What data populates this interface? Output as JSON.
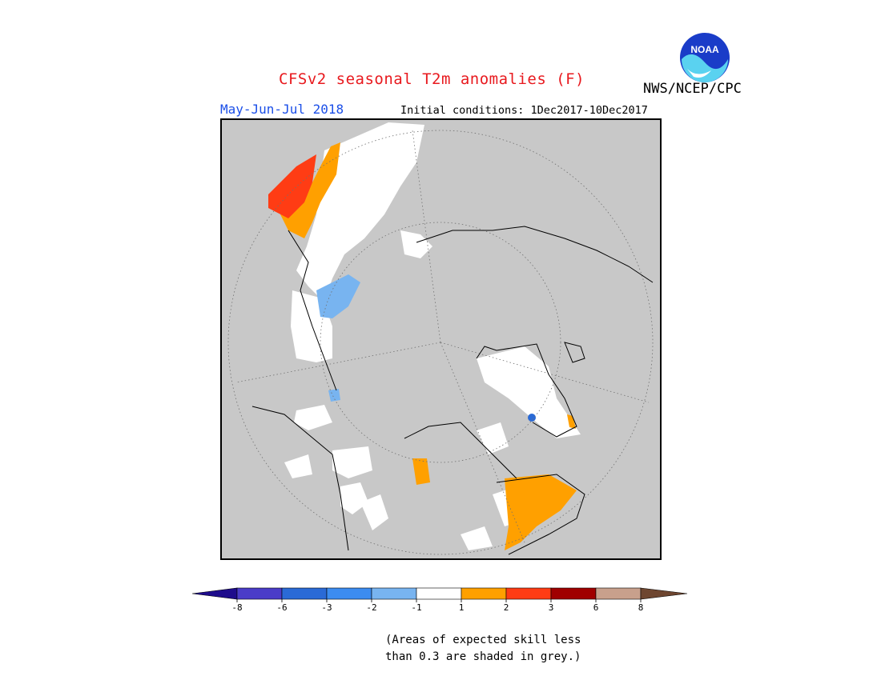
{
  "header": {
    "title": "CFSv2 seasonal T2m anomalies (F)",
    "period": "May-Jun-Jul 2018",
    "initial_conditions": "Initial conditions: 1Dec2017-10Dec2017",
    "credit": "NWS/NCEP/CPC",
    "logo_text": "NOAA"
  },
  "colors": {
    "title": "#e8191e",
    "period": "#1b4fe8",
    "map_background": "#c8c8c8",
    "near_normal": "#ffffff",
    "warm_1_2": "#ffa000",
    "warm_2_3": "#ff3c14",
    "cool_m2_m1": "#78b4f0",
    "cool_m3_m2": "#3c8cf0"
  },
  "legend": {
    "boxes": [
      {
        "color": "#4a3cc8"
      },
      {
        "color": "#2a6ad6"
      },
      {
        "color": "#3c8cf0"
      },
      {
        "color": "#78b4f0"
      },
      {
        "color": "#ffffff"
      },
      {
        "color": "#ffa000"
      },
      {
        "color": "#ff3c14"
      },
      {
        "color": "#a00000"
      },
      {
        "color": "#c8a08c"
      }
    ],
    "left_arrow_color": "#1e0c8c",
    "right_arrow_color": "#6e4630",
    "labels": [
      "-8",
      "-6",
      "-3",
      "-2",
      "-1",
      "1",
      "2",
      "3",
      "6",
      "8"
    ]
  },
  "note": {
    "line1": "(Areas of expected skill less",
    "line2": "than 0.3 are shaded in grey.)"
  }
}
